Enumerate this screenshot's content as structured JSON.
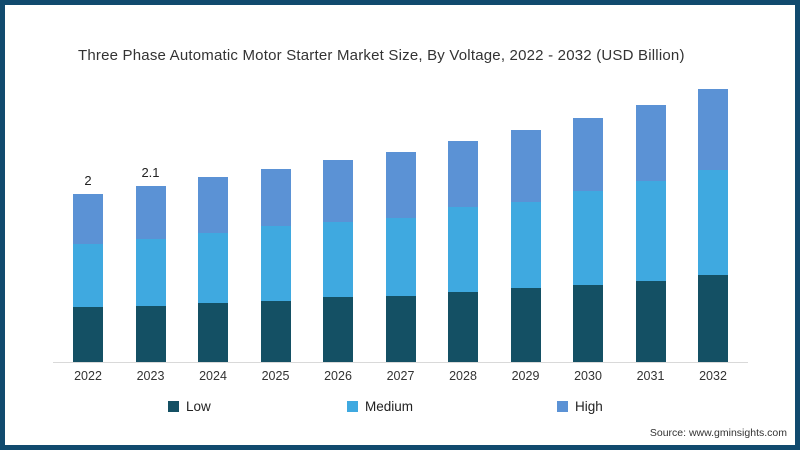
{
  "window": {
    "border_color": "#114A6E",
    "background_color": "#ffffff"
  },
  "title": "Three Phase Automatic Motor Starter Market Size, By Voltage, 2022 - 2032 (USD Billion)",
  "source": "Source: www.gminsights.com",
  "legend": {
    "items": [
      {
        "label": "Low",
        "color": "#145064"
      },
      {
        "label": "Medium",
        "color": "#3FA9E0"
      },
      {
        "label": "High",
        "color": "#5B92D5"
      }
    ]
  },
  "chart_data": {
    "type": "bar",
    "stacked": true,
    "title": "Three Phase Automatic Motor Starter Market Size, By Voltage, 2022 - 2032 (USD Billion)",
    "categories": [
      "2022",
      "2023",
      "2024",
      "2025",
      "2026",
      "2027",
      "2028",
      "2029",
      "2030",
      "2031",
      "2032"
    ],
    "series": [
      {
        "name": "Low",
        "color": "#145064",
        "values": [
          0.65,
          0.67,
          0.7,
          0.73,
          0.77,
          0.79,
          0.83,
          0.88,
          0.92,
          0.97,
          1.03
        ]
      },
      {
        "name": "Medium",
        "color": "#3FA9E0",
        "values": [
          0.75,
          0.8,
          0.83,
          0.89,
          0.9,
          0.93,
          1.02,
          1.03,
          1.12,
          1.18,
          1.25
        ]
      },
      {
        "name": "High",
        "color": "#5B92D5",
        "values": [
          0.6,
          0.63,
          0.67,
          0.68,
          0.73,
          0.78,
          0.78,
          0.85,
          0.86,
          0.91,
          0.97
        ]
      }
    ],
    "totals": [
      2.0,
      2.1,
      2.2,
      2.3,
      2.4,
      2.5,
      2.63,
      2.76,
      2.9,
      3.06,
      3.25
    ],
    "bar_value_labels": {
      "2022": "2",
      "2023": "2.1"
    },
    "xlabel": "",
    "ylabel": "",
    "ylim": [
      0,
      3.6
    ],
    "grid": false,
    "y_axis_visible": false,
    "legend_entries": [
      "Low",
      "Medium",
      "High"
    ],
    "legend_position": "bottom"
  }
}
